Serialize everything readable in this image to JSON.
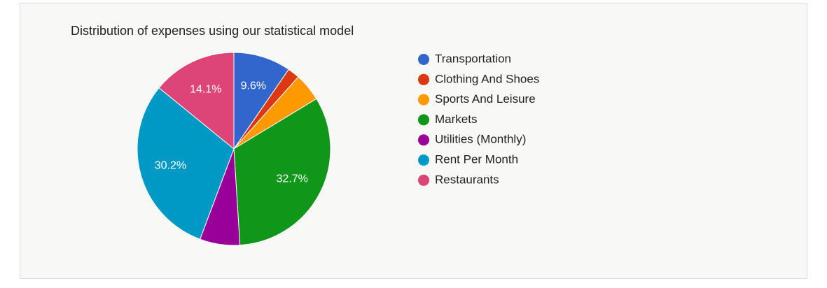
{
  "chart_data": {
    "type": "pie",
    "title": "Distribution of expenses using our statistical model",
    "categories": [
      "Transportation",
      "Clothing And Shoes",
      "Sports And Leisure",
      "Markets",
      "Utilities (Monthly)",
      "Rent Per Month",
      "Restaurants"
    ],
    "values": [
      9.6,
      2.0,
      4.7,
      32.7,
      6.7,
      30.2,
      14.1
    ],
    "value_labels": [
      "9.6%",
      null,
      null,
      "32.7%",
      null,
      "30.2%",
      "14.1%"
    ],
    "colors": [
      "#3366cc",
      "#dc3912",
      "#ff9900",
      "#109618",
      "#990099",
      "#0099c6",
      "#dd4477"
    ],
    "legend": "right"
  }
}
